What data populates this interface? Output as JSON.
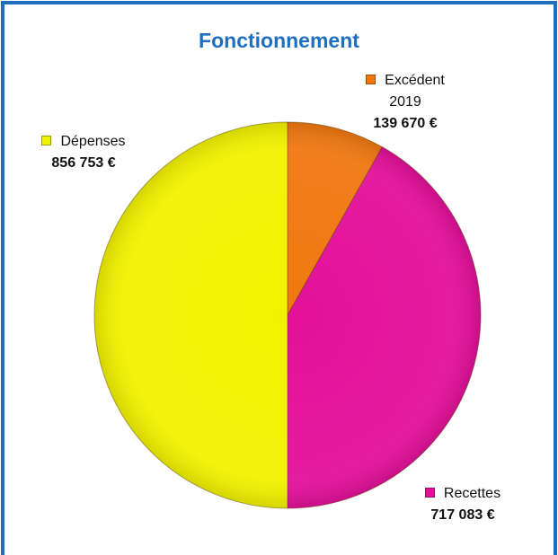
{
  "chart_data": {
    "type": "pie",
    "title": "Fonctionnement",
    "categories": [
      "Excédent 2019",
      "Recettes",
      "Dépenses"
    ],
    "values": [
      139670,
      717083,
      856753
    ],
    "value_labels": [
      "139 670 €",
      "717 083 €",
      "856 753 €"
    ],
    "colors": [
      "#f07810",
      "#e3109a",
      "#f2f200"
    ]
  }
}
